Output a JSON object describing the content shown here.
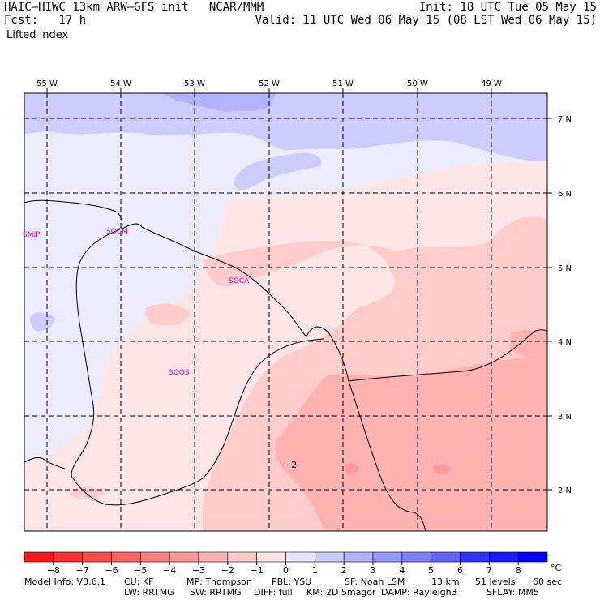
{
  "header": {
    "line1_left": "HAIC–HIWC 13km ARW–GFS init   NCAR/MMM",
    "line1_right": "Init: 18 UTC Tue 05 May 15",
    "line2_left": "Fcst:   17 h",
    "line2_right": "Valid: 11 UTC Wed 06 May 15 (08 LST Wed 06 May 15)",
    "field_name": "Lifted index"
  },
  "map": {
    "lon_labels": [
      "55 W",
      "54 W",
      "53 W",
      "52 W",
      "51 W",
      "50 W",
      "49 W"
    ],
    "lat_labels": [
      "7 N",
      "6 N",
      "5 N",
      "4 N",
      "3 N",
      "2 N"
    ],
    "stations": [
      "SMJP",
      "SOCM",
      "SOCA",
      "SOOS"
    ],
    "contour_label": "−2"
  },
  "colorbar": {
    "unit": "°C",
    "tick_labels": [
      "−8",
      "−7",
      "−6",
      "−5",
      "−4",
      "−3",
      "−2",
      "−1",
      "0",
      "1",
      "2",
      "3",
      "4",
      "5",
      "6",
      "7",
      "8"
    ],
    "colors": [
      "#ff1a1a",
      "#ff3333",
      "#ff4d4d",
      "#ff6666",
      "#ff8080",
      "#ff9999",
      "#ffb3b3",
      "#ffcccc",
      "#ffe6e6",
      "#e6e6ff",
      "#ccccff",
      "#b3b3ff",
      "#9999ff",
      "#8080ff",
      "#6666ff",
      "#3333ff",
      "#1a1aff",
      "#0000ff"
    ]
  },
  "footer": {
    "line1": [
      {
        "key": "model",
        "text": "Model Info: V3.6.1"
      },
      {
        "key": "cu",
        "text": "CU: KF"
      },
      {
        "key": "mp",
        "text": "MP: Thompson"
      },
      {
        "key": "pbl",
        "text": "PBL: YSU"
      },
      {
        "key": "sf",
        "text": "SF: Noah LSM"
      },
      {
        "key": "res",
        "text": "13 km"
      },
      {
        "key": "levels",
        "text": "51 levels"
      },
      {
        "key": "dt",
        "text": "60 sec"
      }
    ],
    "line2": [
      {
        "key": "lw",
        "text": "LW: RRTMG"
      },
      {
        "key": "sw",
        "text": "SW: RRTMG"
      },
      {
        "key": "diff",
        "text": "DIFF: full"
      },
      {
        "key": "km",
        "text": "KM: 2D Smagor"
      },
      {
        "key": "damp",
        "text": "DAMP: Rayleigh3"
      },
      {
        "key": "sflay",
        "text": "SFLAY: MM5"
      }
    ]
  }
}
